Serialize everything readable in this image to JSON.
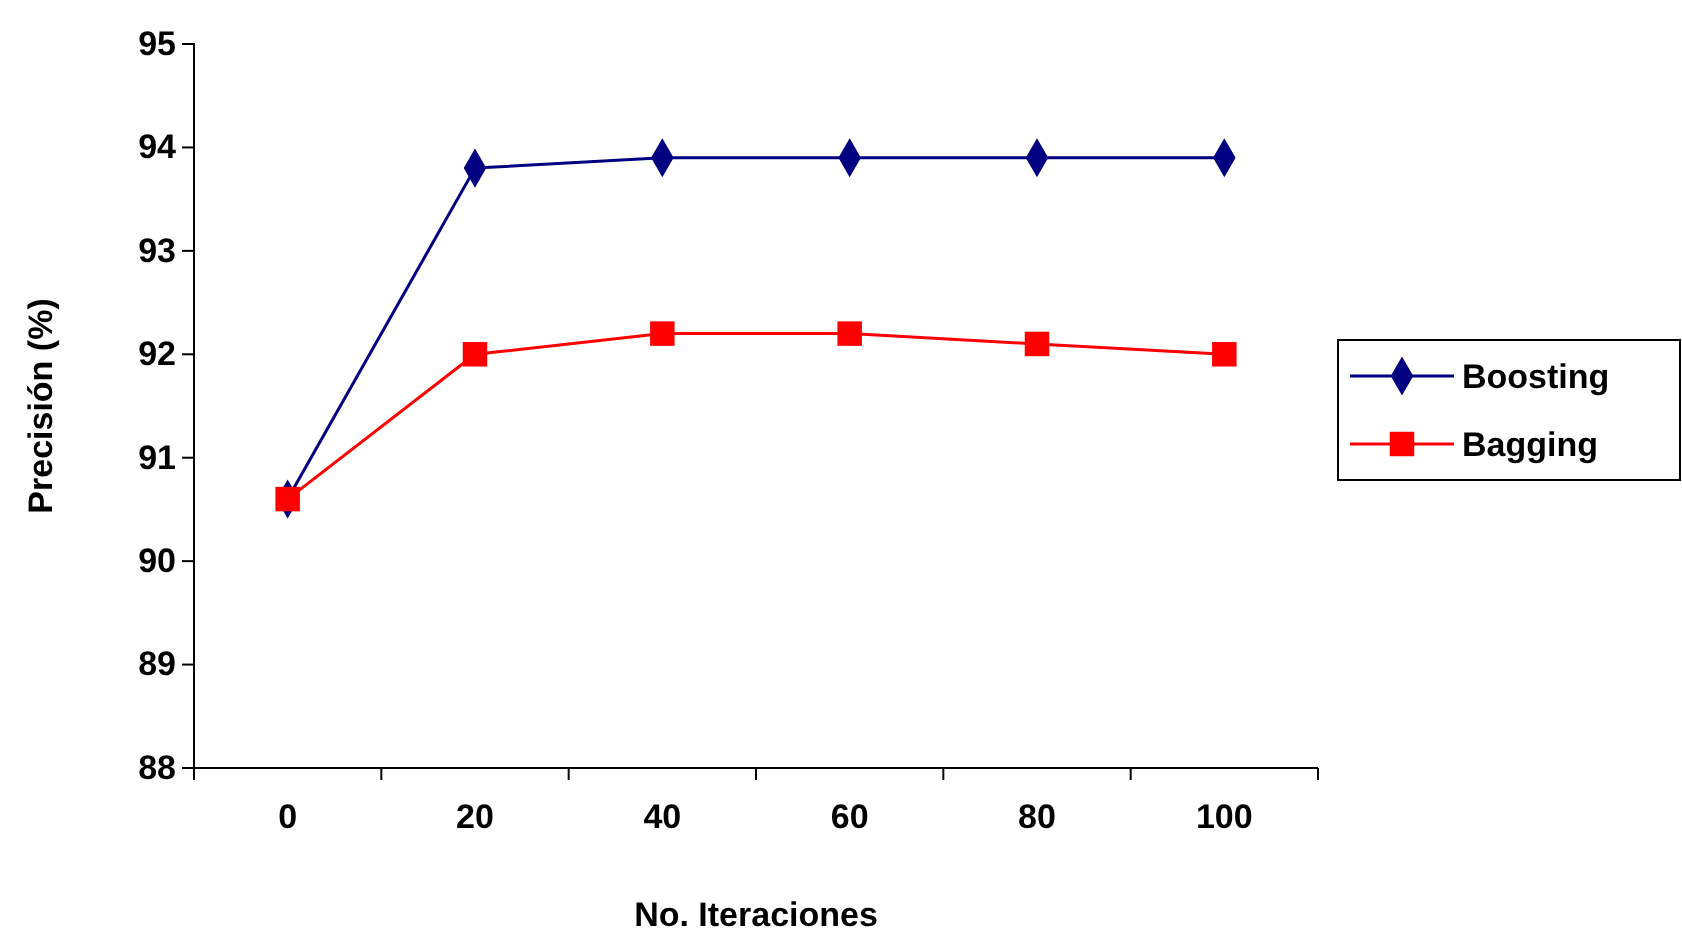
{
  "chart_data": {
    "type": "line",
    "xlabel": "No. Iteraciones",
    "ylabel": "Precisión (%)",
    "categories": [
      "0",
      "20",
      "40",
      "60",
      "80",
      "100"
    ],
    "series": [
      {
        "name": "Boosting",
        "color": "#000080",
        "marker": "diamond",
        "values": [
          90.6,
          93.8,
          93.9,
          93.9,
          93.9,
          93.9
        ]
      },
      {
        "name": "Bagging",
        "color": "#ff0000",
        "marker": "square",
        "values": [
          90.6,
          92.0,
          92.2,
          92.2,
          92.1,
          92.0
        ]
      }
    ],
    "ylim": [
      88,
      95
    ],
    "yticks": [
      88,
      89,
      90,
      91,
      92,
      93,
      94,
      95
    ],
    "grid": false,
    "legend": "right",
    "line_style": "solid"
  }
}
